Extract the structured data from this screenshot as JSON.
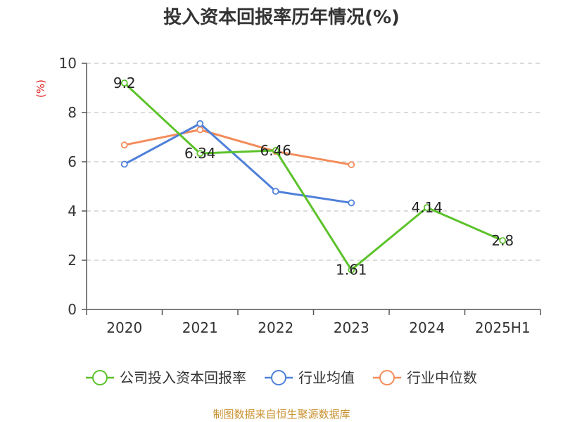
{
  "title": "投入资本回报率历年情况(%)",
  "source": "制图数据来自恒生聚源数据库",
  "chart_data": {
    "type": "line",
    "title": "投入资本回报率历年情况(%)",
    "categories": [
      "2020",
      "2021",
      "2022",
      "2023",
      "2024",
      "2025H1"
    ],
    "ylim": [
      0,
      10
    ],
    "yticks": [
      0,
      2,
      4,
      6,
      8,
      10
    ],
    "yunit": "(%)",
    "yunit_color": "#e02020",
    "grid": true,
    "legend_position": "bottom",
    "series": [
      {
        "name": "公司投入资本回报率",
        "color": "#5cc22a",
        "values": [
          9.2,
          6.34,
          6.46,
          1.61,
          4.14,
          2.8
        ],
        "labels": [
          "9.2",
          "6.34",
          "6.46",
          "1.61",
          "4.14",
          "2.8"
        ]
      },
      {
        "name": "行业均值",
        "color": "#4f80d9",
        "values": [
          5.9,
          7.55,
          4.8,
          4.33,
          null,
          null
        ]
      },
      {
        "name": "行业中位数",
        "color": "#f38c5a",
        "values": [
          6.68,
          7.3,
          6.42,
          5.88,
          null,
          null
        ]
      }
    ]
  }
}
